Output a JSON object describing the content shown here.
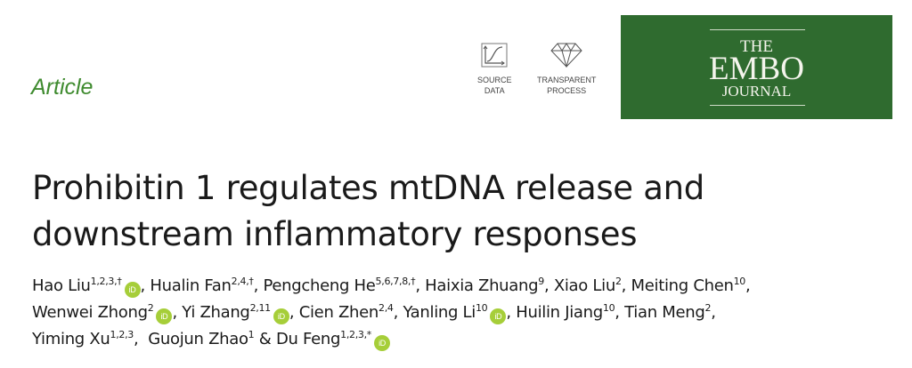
{
  "article_type": "Article",
  "badges": [
    {
      "icon": "source-data-chart-icon",
      "lines": [
        "SOURCE",
        "DATA"
      ]
    },
    {
      "icon": "diamond-icon",
      "lines": [
        "TRANSPARENT",
        "PROCESS"
      ]
    }
  ],
  "journal_logo": {
    "line1": "THE",
    "line2": "EMBO",
    "line3": "JOURNAL",
    "color": "#2f6b2f"
  },
  "title": {
    "line1": "Prohibitin 1 regulates mtDNA release and",
    "line2": "downstream inflammatory responses"
  },
  "orcid_label": "iD",
  "orcid_color": "#a6ce39",
  "author_lines": [
    [
      {
        "name": "Hao Liu",
        "sup": "1,2,3,†",
        "orcid": true,
        "sep": ", "
      },
      {
        "name": "Hualin Fan",
        "sup": "2,4,†",
        "orcid": false,
        "sep": ", "
      },
      {
        "name": "Pengcheng He",
        "sup": "5,6,7,8,†",
        "orcid": false,
        "sep": ", "
      },
      {
        "name": "Haixia Zhuang",
        "sup": "9",
        "orcid": false,
        "sep": ", "
      },
      {
        "name": "Xiao Liu",
        "sup": "2",
        "orcid": false,
        "sep": ", "
      },
      {
        "name": "Meiting Chen",
        "sup": "10",
        "orcid": false,
        "sep": ","
      }
    ],
    [
      {
        "name": "Wenwei Zhong",
        "sup": "2",
        "orcid": true,
        "sep": ", "
      },
      {
        "name": "Yi Zhang",
        "sup": "2,11",
        "orcid": true,
        "sep": ", "
      },
      {
        "name": "Cien Zhen",
        "sup": "2,4",
        "orcid": false,
        "sep": ", "
      },
      {
        "name": "Yanling Li",
        "sup": "10",
        "orcid": true,
        "sep": ", "
      },
      {
        "name": "Huilin Jiang",
        "sup": "10",
        "orcid": false,
        "sep": ", "
      },
      {
        "name": "Tian Meng",
        "sup": "2",
        "orcid": false,
        "sep": ","
      }
    ],
    [
      {
        "name": "Yiming Xu",
        "sup": "1,2,3",
        "orcid": false,
        "sep": ",  "
      },
      {
        "name": "Guojun Zhao",
        "sup": "1",
        "orcid": false,
        "sep": " & "
      },
      {
        "name": "Du Feng",
        "sup": "1,2,3,*",
        "orcid": true,
        "sep": ""
      }
    ]
  ]
}
